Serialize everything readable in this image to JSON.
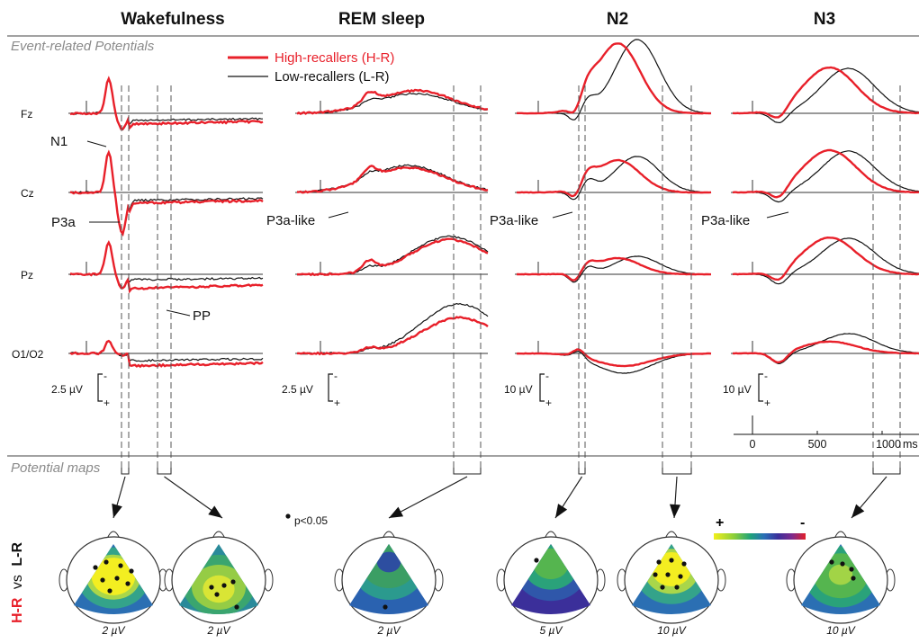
{
  "chart_data": {
    "type": "line",
    "columns": [
      "Wakefulness",
      "REM sleep",
      "N2",
      "N3"
    ],
    "sections": {
      "erp": "Event-related Potentials",
      "maps": "Potential maps"
    },
    "channels": [
      "Fz",
      "Cz",
      "Pz",
      "O1/O2"
    ],
    "series": [
      {
        "name": "High-recallers (H-R)",
        "color": "#e8202a"
      },
      {
        "name": "Low-recallers (L-R)",
        "color": "#111111"
      }
    ],
    "annotations": [
      "N1",
      "P3a",
      "PP",
      "P3a-like",
      "P3a-like",
      "P3a-like"
    ],
    "scale_bars": [
      "2.5 µV",
      "2.5 µV",
      "10 µV",
      "10 µV"
    ],
    "polarity": {
      "minus": "-",
      "plus": "+"
    },
    "time_axis": {
      "ticks": [
        "0",
        "500",
        "1000"
      ],
      "unit": "ms"
    },
    "significance_label": "p<0.05",
    "colorbar": {
      "plus": "+",
      "minus": "-"
    },
    "contrast_label": {
      "a": "H-R",
      "vs": "vs",
      "b": "L-R"
    },
    "maps": [
      {
        "column": "Wakefulness",
        "scale": "2 µV"
      },
      {
        "column": "Wakefulness",
        "scale": "2 µV"
      },
      {
        "column": "REM sleep",
        "scale": "2 µV"
      },
      {
        "column": "N2",
        "scale": "5 µV"
      },
      {
        "column": "N2",
        "scale": "10 µV"
      },
      {
        "column": "N3",
        "scale": "10 µV"
      }
    ]
  }
}
